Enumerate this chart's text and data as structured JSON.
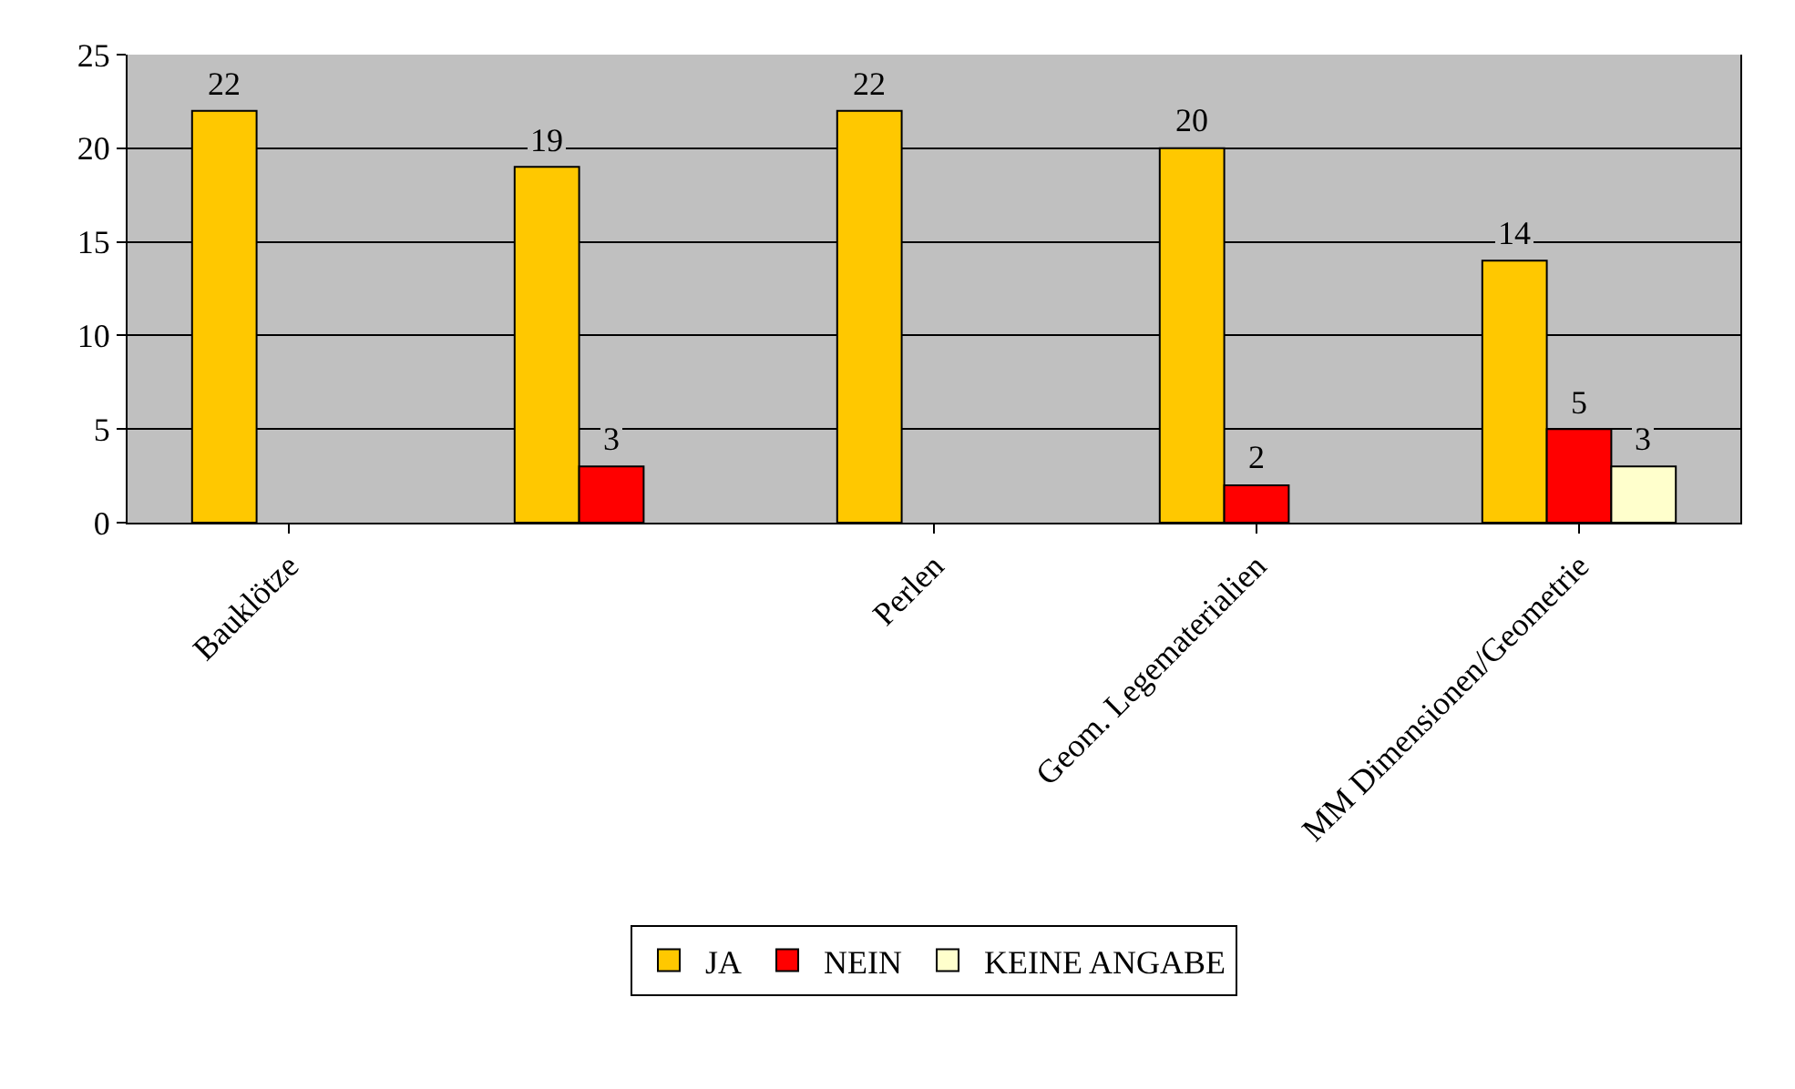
{
  "chart_data": {
    "type": "bar",
    "categories": [
      "Bauklötze",
      null,
      "Perlen",
      "Geom. Legematerialien",
      "MM Dimensionen/Geometrie"
    ],
    "series": [
      {
        "name": "JA",
        "color": "#ffc800",
        "values": [
          22,
          19,
          22,
          20,
          14
        ]
      },
      {
        "name": "NEIN",
        "color": "#ff0000",
        "values": [
          null,
          3,
          null,
          2,
          5
        ]
      },
      {
        "name": "KEINE ANGABE",
        "color": "#ffffcc",
        "values": [
          null,
          null,
          null,
          null,
          3
        ]
      }
    ],
    "ylim": [
      0,
      25
    ],
    "yticks": [
      0,
      5,
      10,
      15,
      20,
      25
    ],
    "grid": "y",
    "legend": "bottom",
    "data_labels": true
  }
}
